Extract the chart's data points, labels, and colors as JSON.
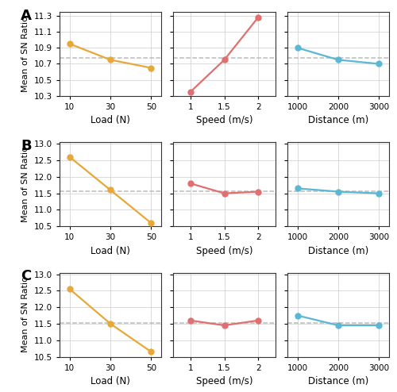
{
  "rows": [
    {
      "label": "A",
      "ylim": [
        10.3,
        11.35
      ],
      "yticks": [
        10.3,
        10.5,
        10.7,
        10.9,
        11.1,
        11.3
      ],
      "dashed_y": 10.77,
      "load": {
        "x": [
          10,
          30,
          50
        ],
        "y": [
          10.95,
          10.75,
          10.65
        ]
      },
      "speed": {
        "x": [
          1,
          1.5,
          2
        ],
        "y": [
          10.35,
          10.75,
          11.28
        ]
      },
      "distance": {
        "x": [
          1000,
          2000,
          3000
        ],
        "y": [
          10.9,
          10.75,
          10.7
        ]
      }
    },
    {
      "label": "B",
      "ylim": [
        10.5,
        13.05
      ],
      "yticks": [
        10.5,
        11.0,
        11.5,
        12.0,
        12.5,
        13.0
      ],
      "dashed_y": 11.57,
      "load": {
        "x": [
          10,
          30,
          50
        ],
        "y": [
          12.6,
          11.6,
          10.6
        ]
      },
      "speed": {
        "x": [
          1,
          1.5,
          2
        ],
        "y": [
          11.8,
          11.5,
          11.55
        ]
      },
      "distance": {
        "x": [
          1000,
          2000,
          3000
        ],
        "y": [
          11.65,
          11.55,
          11.5
        ]
      }
    },
    {
      "label": "C",
      "ylim": [
        10.5,
        13.05
      ],
      "yticks": [
        10.5,
        11.0,
        11.5,
        12.0,
        12.5,
        13.0
      ],
      "dashed_y": 11.52,
      "load": {
        "x": [
          10,
          30,
          50
        ],
        "y": [
          12.55,
          11.5,
          10.65
        ]
      },
      "speed": {
        "x": [
          1,
          1.5,
          2
        ],
        "y": [
          11.6,
          11.45,
          11.6
        ]
      },
      "distance": {
        "x": [
          1000,
          2000,
          3000
        ],
        "y": [
          11.75,
          11.45,
          11.45
        ]
      }
    }
  ],
  "xlims": {
    "load": [
      5,
      55
    ],
    "speed": [
      0.75,
      2.25
    ],
    "distance": [
      750,
      3250
    ]
  },
  "xticks": {
    "load": [
      10,
      30,
      50
    ],
    "speed": [
      1,
      1.5,
      2
    ],
    "distance": [
      1000,
      2000,
      3000
    ]
  },
  "xlabels": [
    "Load (N)",
    "Speed (m/s)",
    "Distance (m)"
  ],
  "ylabel": "Mean of SN Ratio",
  "colors": {
    "load": "#E8A838",
    "speed": "#E07070",
    "distance": "#5BB8D4"
  },
  "dashed_color": "#BBBBBB",
  "marker": "o",
  "markersize": 5,
  "linewidth": 1.6,
  "background_color": "#ffffff",
  "spine_color": "#333333",
  "grid_color": "#CCCCCC",
  "tick_labelsize": 7.5,
  "xlabel_fontsize": 8.5,
  "ylabel_fontsize": 8.0,
  "row_label_fontsize": 13
}
